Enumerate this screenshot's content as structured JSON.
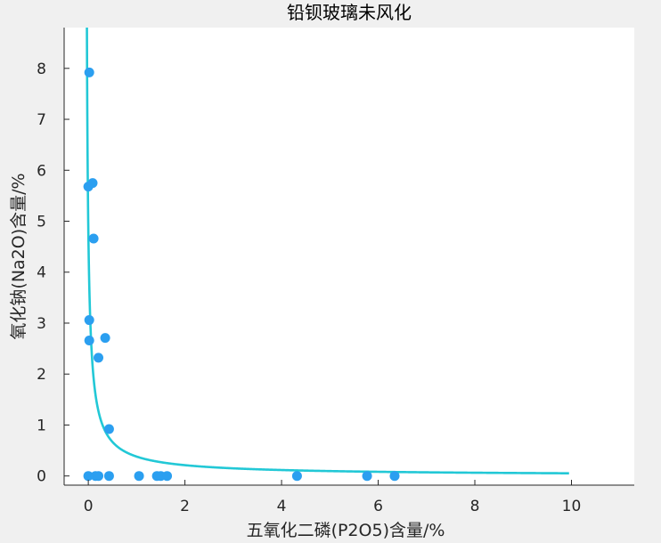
{
  "chart_data": {
    "type": "scatter",
    "title": "铅钡玻璃未风化",
    "xlabel": "五氧化二磷(P2O5)含量/%",
    "ylabel": "氧化钠(Na2O)含量/%",
    "xlim": [
      -0.5,
      11.3
    ],
    "ylim": [
      -0.18,
      8.8
    ],
    "x_ticks": [
      0,
      2,
      4,
      6,
      8,
      10
    ],
    "y_ticks": [
      0,
      1,
      2,
      3,
      4,
      5,
      6,
      7,
      8
    ],
    "grid": false,
    "colors": {
      "points": "#2b9ff0",
      "curve": "#22c8d6"
    },
    "series": [
      {
        "type": "scatter",
        "points": [
          [
            0.02,
            7.92
          ],
          [
            0.0,
            5.68
          ],
          [
            0.09,
            5.75
          ],
          [
            0.11,
            4.66
          ],
          [
            0.02,
            3.06
          ],
          [
            0.02,
            2.66
          ],
          [
            0.35,
            2.71
          ],
          [
            0.21,
            2.32
          ],
          [
            0.43,
            0.92
          ],
          [
            0.0,
            0.0
          ],
          [
            0.15,
            0.0
          ],
          [
            0.21,
            0.0
          ],
          [
            0.43,
            0.0
          ],
          [
            1.05,
            0.0
          ],
          [
            1.42,
            0.0
          ],
          [
            1.5,
            0.0
          ],
          [
            1.63,
            0.0
          ],
          [
            4.32,
            0.0
          ],
          [
            5.77,
            0.0
          ],
          [
            6.34,
            0.0
          ]
        ]
      },
      {
        "type": "line",
        "fit": {
          "model": "power",
          "a": 0.4,
          "b": -0.88,
          "x_range": [
            -0.055,
            9.95
          ]
        }
      }
    ]
  }
}
